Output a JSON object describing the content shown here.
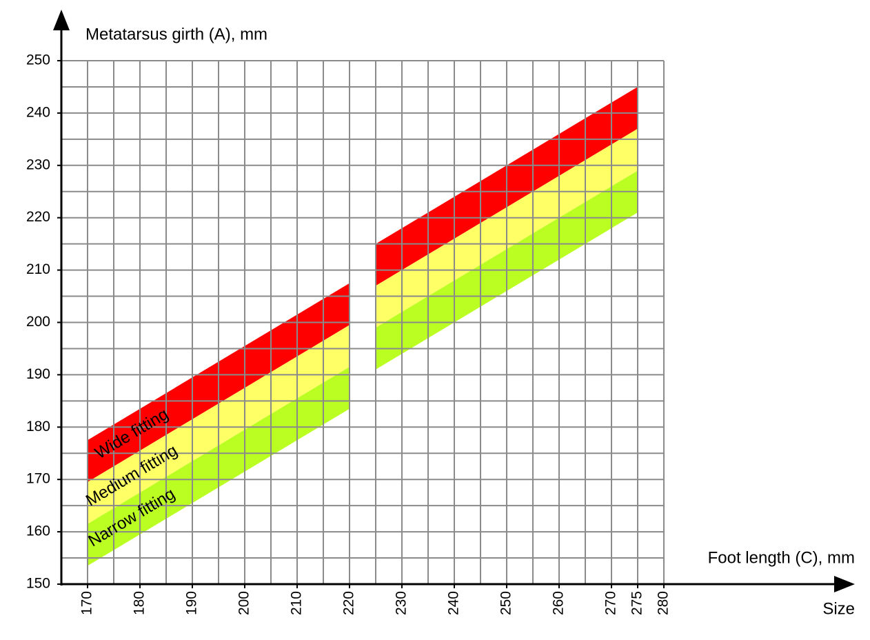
{
  "chart_data": {
    "type": "band",
    "y_label": "Metatarsus girth (A), mm",
    "x_label": "Foot length (C), mm",
    "x_sublabel": "Size",
    "xlim": [
      165,
      280
    ],
    "ylim": [
      150,
      250
    ],
    "xticks": [
      170,
      180,
      190,
      200,
      210,
      220,
      230,
      240,
      250,
      260,
      270,
      {
        "value": 275,
        "label": "275",
        "color": "#ff0000"
      },
      280
    ],
    "yticks": [
      150,
      160,
      170,
      180,
      190,
      200,
      210,
      220,
      230,
      240,
      250
    ],
    "xgrid": [
      170,
      175,
      180,
      185,
      190,
      195,
      200,
      205,
      210,
      215,
      220,
      225,
      230,
      235,
      240,
      245,
      250,
      255,
      260,
      265,
      270,
      275,
      280
    ],
    "ygrid": [
      155,
      160,
      165,
      170,
      175,
      180,
      185,
      190,
      195,
      200,
      205,
      210,
      215,
      220,
      225,
      230,
      235,
      240,
      245,
      250
    ],
    "grid_color": "#8a8a8a",
    "series": [
      {
        "name": "Wide fitting",
        "color": "#ff0000",
        "segments": [
          {
            "x": [
              170,
              220
            ],
            "upper": [
              177.5,
              207.5
            ],
            "lower": [
              169.5,
              199.5
            ]
          },
          {
            "x": [
              225,
              275
            ],
            "upper": [
              215,
              245
            ],
            "lower": [
              207,
              237
            ]
          }
        ]
      },
      {
        "name": "Medium fitting",
        "color": "#ffff66",
        "segments": [
          {
            "x": [
              170,
              220
            ],
            "upper": [
              169.5,
              199.5
            ],
            "lower": [
              161.5,
              191.5
            ]
          },
          {
            "x": [
              225,
              275
            ],
            "upper": [
              207,
              237
            ],
            "lower": [
              199,
              229
            ]
          }
        ]
      },
      {
        "name": "Narrow fitting",
        "color": "#bbff22",
        "segments": [
          {
            "x": [
              170,
              220
            ],
            "upper": [
              161.5,
              191.5
            ],
            "lower": [
              153.5,
              183.5
            ]
          },
          {
            "x": [
              225,
              275
            ],
            "upper": [
              199,
              229
            ],
            "lower": [
              191,
              221
            ]
          }
        ]
      }
    ]
  }
}
